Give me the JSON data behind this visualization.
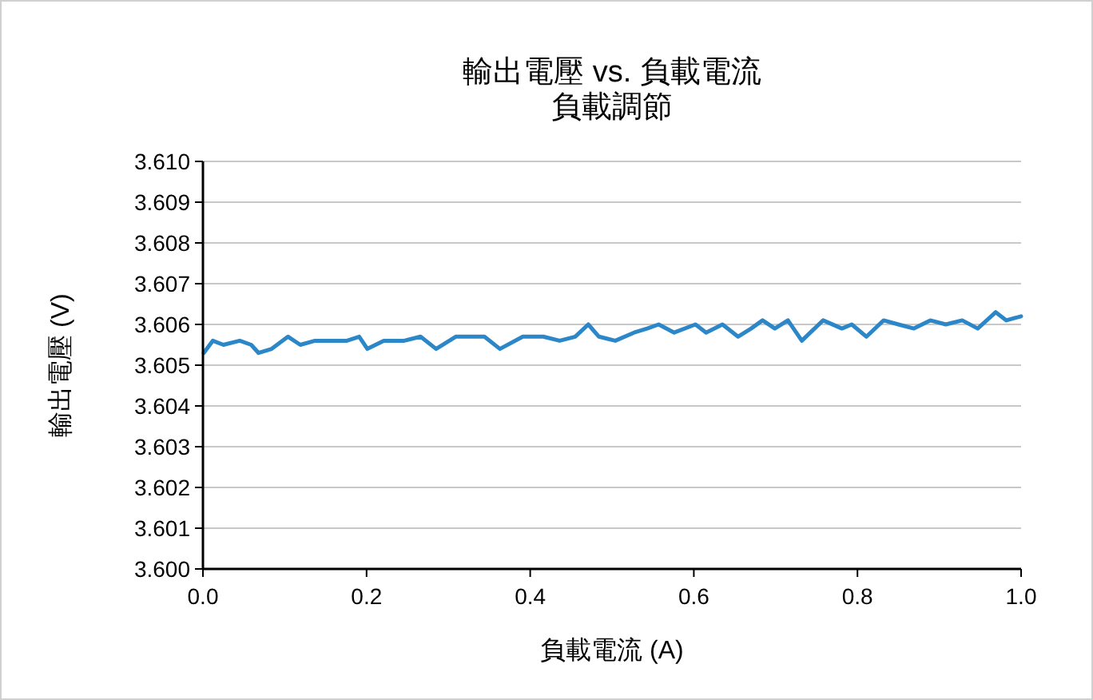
{
  "chart_data": {
    "type": "line",
    "title": "輸出電壓 vs. 負載電流",
    "subtitle": "負載調節",
    "xlabel": "負載電流 (A)",
    "ylabel": "輸出電壓 (V)",
    "xlim": [
      0,
      1
    ],
    "xticks": [
      {
        "value": 0,
        "label": "0.0"
      },
      {
        "value": 0.2,
        "label": "0.2"
      },
      {
        "value": 0.4,
        "label": "0.4"
      },
      {
        "value": 0.6,
        "label": "0.6"
      },
      {
        "value": 0.8,
        "label": "0.8"
      },
      {
        "value": 1,
        "label": "1.0"
      }
    ],
    "ylim": [
      3.6,
      3.61
    ],
    "yticks": [
      {
        "value": 3.6,
        "label": "3.600"
      },
      {
        "value": 3.601,
        "label": "3.601"
      },
      {
        "value": 3.602,
        "label": "3.602"
      },
      {
        "value": 3.603,
        "label": "3.603"
      },
      {
        "value": 3.604,
        "label": "3.604"
      },
      {
        "value": 3.605,
        "label": "3.605"
      },
      {
        "value": 3.606,
        "label": "3.606"
      },
      {
        "value": 3.607,
        "label": "3.607"
      },
      {
        "value": 3.608,
        "label": "3.608"
      },
      {
        "value": 3.609,
        "label": "3.609"
      },
      {
        "value": 3.61,
        "label": "3.610"
      }
    ],
    "grid": "y",
    "series": [
      {
        "color": "#2b87c8",
        "x": [
          0.001,
          0.012,
          0.025,
          0.045,
          0.059,
          0.068,
          0.084,
          0.104,
          0.119,
          0.137,
          0.156,
          0.176,
          0.191,
          0.201,
          0.221,
          0.246,
          0.266,
          0.285,
          0.309,
          0.324,
          0.332,
          0.344,
          0.363,
          0.391,
          0.416,
          0.436,
          0.455,
          0.471,
          0.484,
          0.504,
          0.527,
          0.543,
          0.557,
          0.576,
          0.602,
          0.615,
          0.635,
          0.654,
          0.67,
          0.684,
          0.699,
          0.715,
          0.732,
          0.758,
          0.781,
          0.793,
          0.811,
          0.832,
          0.85,
          0.869,
          0.889,
          0.908,
          0.928,
          0.947,
          0.969,
          0.982,
          1.0
        ],
        "values": [
          3.6053,
          3.6056,
          3.6055,
          3.6056,
          3.6055,
          3.6053,
          3.6054,
          3.6057,
          3.6055,
          3.6056,
          3.6056,
          3.6056,
          3.6057,
          3.6054,
          3.6056,
          3.6056,
          3.6057,
          3.6054,
          3.6057,
          3.6057,
          3.6057,
          3.6057,
          3.6054,
          3.6057,
          3.6057,
          3.6056,
          3.6057,
          3.606,
          3.6057,
          3.6056,
          3.6058,
          3.6059,
          3.606,
          3.6058,
          3.606,
          3.6058,
          3.606,
          3.6057,
          3.6059,
          3.6061,
          3.6059,
          3.6061,
          3.6056,
          3.6061,
          3.6059,
          3.606,
          3.6057,
          3.6061,
          3.606,
          3.6059,
          3.6061,
          3.606,
          3.6061,
          3.6059,
          3.6063,
          3.6061,
          3.6062
        ]
      }
    ]
  }
}
